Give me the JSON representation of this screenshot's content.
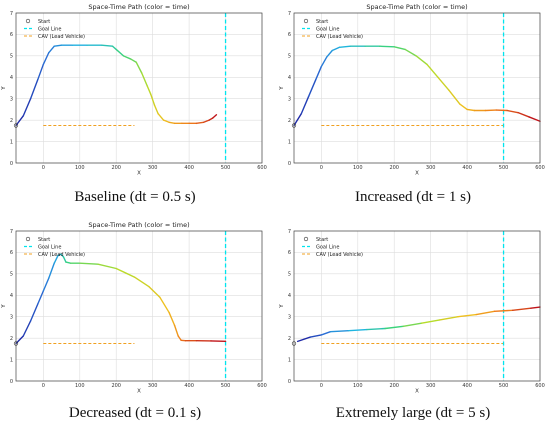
{
  "figure": {
    "captions": [
      "Baseline (dt = 0.5 s)",
      "Increased (dt = 1 s)",
      "Decreased (dt = 0.1 s)",
      "Extremely large (dt = 5 s)"
    ]
  },
  "chart_data": [
    {
      "type": "line",
      "title": "Space-Time Path (color = time)",
      "xlabel": "X",
      "ylabel": "Y",
      "xlim": [
        -75,
        600
      ],
      "ylim": [
        0,
        7
      ],
      "xticks": [
        0,
        100,
        200,
        300,
        400,
        500,
        600
      ],
      "yticks": [
        0,
        1,
        2,
        3,
        4,
        5,
        6,
        7
      ],
      "grid": true,
      "legend_position": "top-left",
      "legend": [
        "Start",
        "Goal Line",
        "CAV (Lead Vehicle)"
      ],
      "start": {
        "x": -75,
        "y": 1.75
      },
      "goal_x": 500,
      "cav": {
        "x": [
          0,
          250
        ],
        "y": 1.75
      },
      "path": {
        "x": [
          -75,
          -55,
          -35,
          -15,
          0,
          15,
          30,
          50,
          80,
          120,
          160,
          190,
          200,
          220,
          240,
          255,
          270,
          285,
          295,
          305,
          315,
          330,
          345,
          360,
          380,
          400,
          420,
          440,
          455,
          465,
          475
        ],
        "y": [
          1.75,
          2.2,
          3.0,
          3.9,
          4.6,
          5.15,
          5.45,
          5.5,
          5.5,
          5.5,
          5.5,
          5.45,
          5.3,
          5.0,
          4.85,
          4.7,
          4.2,
          3.6,
          3.2,
          2.7,
          2.3,
          2.0,
          1.9,
          1.85,
          1.85,
          1.85,
          1.85,
          1.9,
          2.0,
          2.1,
          2.25
        ]
      }
    },
    {
      "type": "line",
      "title": "Space-Time Path (color = time)",
      "xlabel": "X",
      "ylabel": "Y",
      "xlim": [
        -75,
        600
      ],
      "ylim": [
        0,
        7
      ],
      "xticks": [
        0,
        100,
        200,
        300,
        400,
        500,
        600
      ],
      "yticks": [
        0,
        1,
        2,
        3,
        4,
        5,
        6,
        7
      ],
      "grid": true,
      "legend_position": "top-left",
      "legend": [
        "Start",
        "Goal Line",
        "CAV (Lead Vehicle)"
      ],
      "start": {
        "x": -75,
        "y": 1.75
      },
      "goal_x": 500,
      "cav": {
        "x": [
          0,
          500
        ],
        "y": 1.75
      },
      "path": {
        "x": [
          -75,
          -55,
          -35,
          -15,
          0,
          15,
          30,
          50,
          80,
          120,
          160,
          200,
          230,
          260,
          290,
          320,
          350,
          380,
          400,
          420,
          450,
          480,
          510,
          540,
          570,
          600
        ],
        "y": [
          1.75,
          2.3,
          3.1,
          3.9,
          4.5,
          4.95,
          5.25,
          5.4,
          5.45,
          5.45,
          5.45,
          5.42,
          5.3,
          5.0,
          4.6,
          4.0,
          3.4,
          2.75,
          2.5,
          2.45,
          2.45,
          2.47,
          2.45,
          2.35,
          2.15,
          1.95
        ]
      }
    },
    {
      "type": "line",
      "title": "Space-Time Path (color = time)",
      "xlabel": "X",
      "ylabel": "Y",
      "xlim": [
        -75,
        600
      ],
      "ylim": [
        0,
        7
      ],
      "xticks": [
        0,
        100,
        200,
        300,
        400,
        500,
        600
      ],
      "yticks": [
        0,
        1,
        2,
        3,
        4,
        5,
        6,
        7
      ],
      "grid": true,
      "legend_position": "top-left",
      "legend": [
        "Start",
        "Goal Line",
        "CAV (Lead Vehicle)"
      ],
      "start": {
        "x": -75,
        "y": 1.75
      },
      "goal_x": 500,
      "cav": {
        "x": [
          0,
          250
        ],
        "y": 1.75
      },
      "path": {
        "x": [
          -75,
          -55,
          -35,
          -15,
          0,
          15,
          30,
          40,
          48,
          55,
          62,
          75,
          100,
          150,
          200,
          250,
          290,
          320,
          345,
          360,
          370,
          378,
          390,
          420,
          460,
          500
        ],
        "y": [
          1.75,
          2.1,
          2.8,
          3.6,
          4.2,
          4.8,
          5.5,
          5.85,
          5.92,
          5.8,
          5.55,
          5.5,
          5.5,
          5.45,
          5.25,
          4.85,
          4.4,
          3.9,
          3.2,
          2.6,
          2.1,
          1.9,
          1.88,
          1.88,
          1.87,
          1.85
        ]
      }
    },
    {
      "type": "line",
      "title": "",
      "xlabel": "X",
      "ylabel": "Y",
      "xlim": [
        -75,
        600
      ],
      "ylim": [
        0,
        7
      ],
      "xticks": [
        0,
        100,
        200,
        300,
        400,
        500,
        600
      ],
      "yticks": [
        0,
        1,
        2,
        3,
        4,
        5,
        6,
        7
      ],
      "grid": true,
      "legend_position": "top-left",
      "legend": [
        "Start",
        "Goal Line",
        "CAV (Lead Vehicle)"
      ],
      "start": {
        "x": -75,
        "y": 1.75
      },
      "goal_x": 500,
      "cav": {
        "x": [
          0,
          500
        ],
        "y": 1.75
      },
      "path": {
        "x": [
          -65,
          -30,
          0,
          25,
          75,
          125,
          175,
          225,
          275,
          325,
          375,
          425,
          475,
          525,
          575,
          600
        ],
        "y": [
          1.85,
          2.05,
          2.15,
          2.3,
          2.35,
          2.4,
          2.45,
          2.55,
          2.7,
          2.85,
          3.0,
          3.1,
          3.25,
          3.3,
          3.4,
          3.45
        ]
      }
    }
  ],
  "colors": {
    "axis": "#444444",
    "grid": "#dddddd",
    "goal": "#00e5ee",
    "cav": "#f0a020",
    "time_ramp": [
      "#1f2aa8",
      "#2a6fd6",
      "#1fb5e0",
      "#3ad37a",
      "#b6dc2a",
      "#f0c020",
      "#ef7a1a",
      "#c0141a"
    ]
  }
}
